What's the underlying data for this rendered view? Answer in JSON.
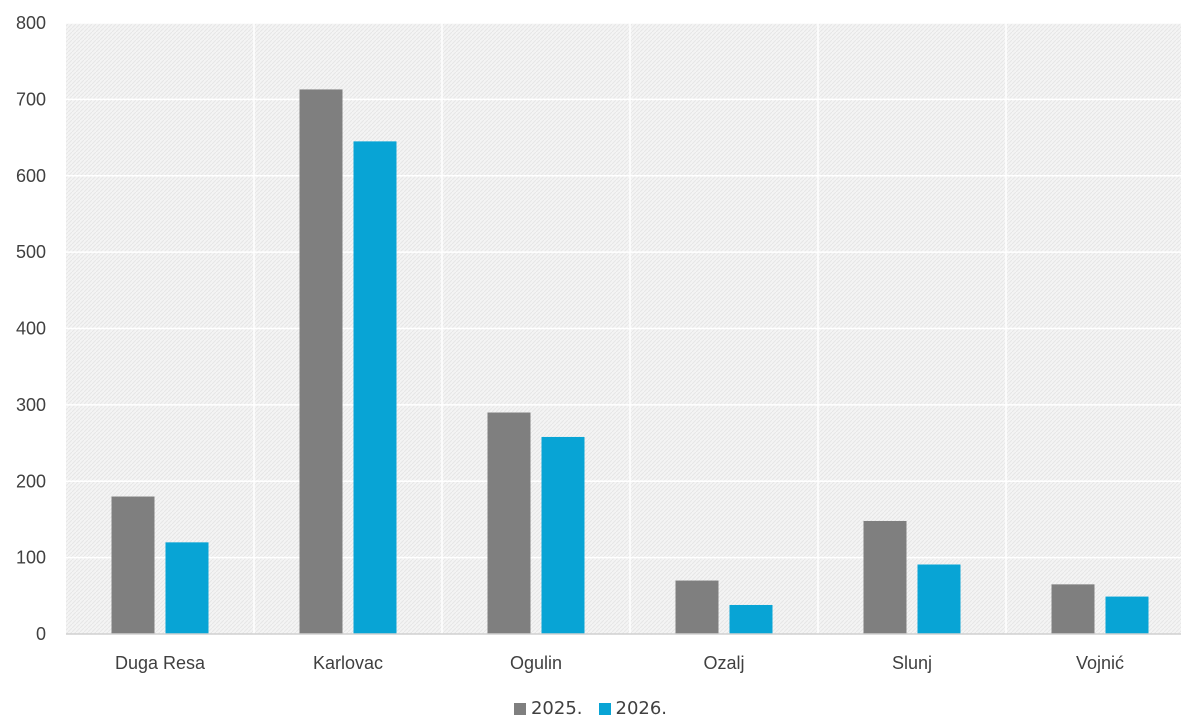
{
  "chart_data": {
    "type": "bar",
    "categories": [
      "Duga Resa",
      "Karlovac",
      "Ogulin",
      "Ozalj",
      "Slunj",
      "Vojnić"
    ],
    "series": [
      {
        "name": "2025.",
        "color": "#7f7f7f",
        "values": [
          180,
          713,
          290,
          70,
          148,
          65
        ]
      },
      {
        "name": "2026.",
        "color": "#08a4d5",
        "values": [
          120,
          645,
          258,
          38,
          91,
          49
        ]
      }
    ],
    "y_ticks": [
      "0",
      "100",
      "200",
      "300",
      "400",
      "500",
      "600",
      "700",
      "800"
    ],
    "ylim": [
      0,
      800
    ],
    "grid": true,
    "legend_position": "bottom-center",
    "plot_background": "#f2f2f2",
    "gridline_color": "#ffffff"
  }
}
